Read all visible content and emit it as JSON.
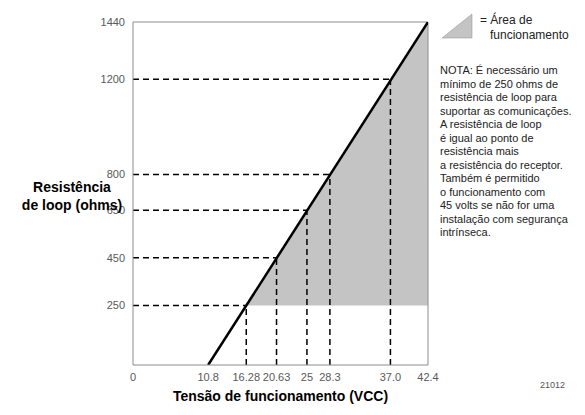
{
  "chart_data": {
    "type": "line",
    "x_label": "Tensão de funcionamento (VCC)",
    "y_label": [
      "Resistência",
      "de loop (ohms)"
    ],
    "xlim": [
      0,
      42.4
    ],
    "ylim": [
      0,
      1440
    ],
    "xticks": [
      0,
      10.8,
      16.28,
      20.63,
      25,
      28.3,
      {
        "value": 37,
        "label": "37.0"
      },
      42.4
    ],
    "yticks": [
      250,
      450,
      650,
      800,
      1200,
      1440
    ],
    "grid": false,
    "series": [
      {
        "type": "line",
        "color": "#000000",
        "line_style": "solid",
        "x": [
          10.8,
          42.4
        ],
        "values": [
          0,
          1440
        ]
      },
      {
        "type": "area",
        "color": "#c4c4c4",
        "x": [
          16.28,
          42.4
        ],
        "values": [
          250,
          1440
        ],
        "base": 250
      }
    ],
    "guides": {
      "line_style": "dashed",
      "color": "#000000",
      "x": [
        16.28,
        20.63,
        25,
        28.3,
        37
      ],
      "values": [
        250,
        450,
        650,
        800,
        1200
      ]
    },
    "legend_label": [
      "= Área de",
      "funcionamento"
    ],
    "note": [
      "NOTA: É necessário um",
      "mínimo de 250 ohms de",
      "resistência de loop para",
      "suportar as comunicações.",
      "A resistência de loop",
      "é igual ao ponto de",
      "resistência mais",
      "a resistência do receptor.",
      "Também é permitido",
      "o funcionamento com",
      "45 volts se não for uma",
      "instalação com segurança",
      "intrínseca."
    ],
    "figure_id": "21012"
  }
}
